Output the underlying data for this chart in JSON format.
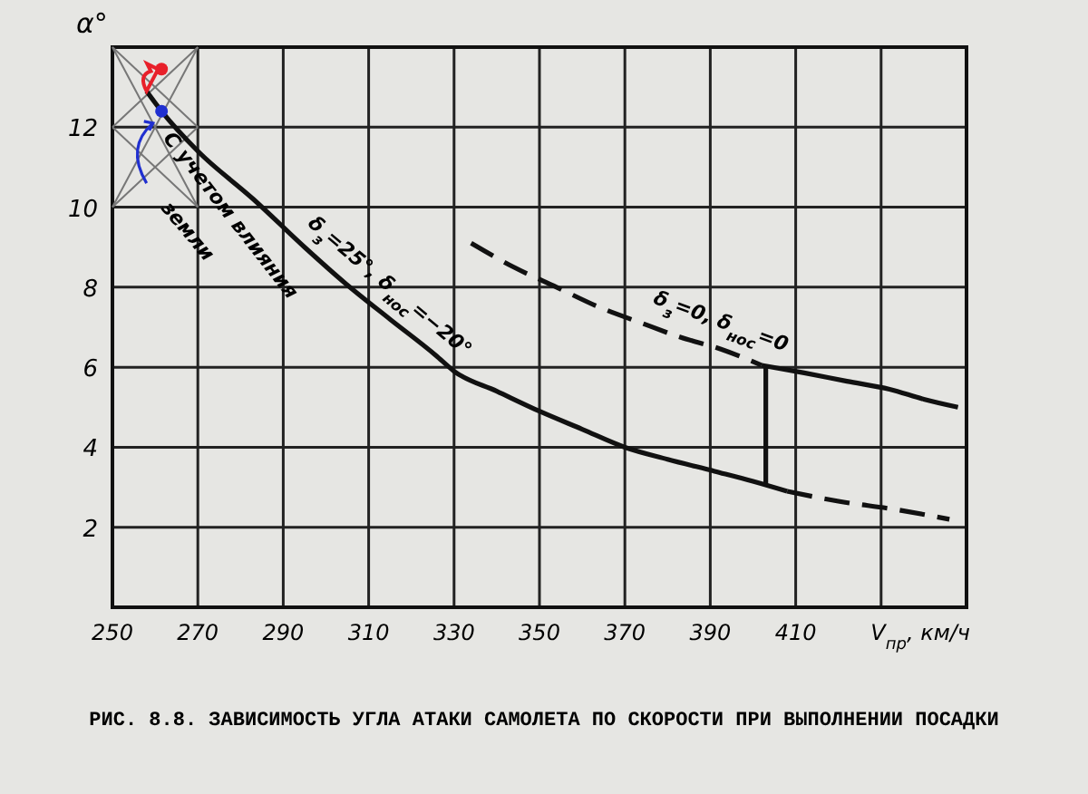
{
  "chart_data": {
    "type": "line",
    "title": "РИС. 8.8. ЗАВИСИМОСТЬ УГЛА АТАКИ САМОЛЕТА ПО СКОРОСТИ ПРИ ВЫПОЛНЕНИИ ПОСАДКИ",
    "xlabel": "V$_{пр}$, км/ч",
    "ylabel": "α°",
    "xlim": [
      250,
      450
    ],
    "xticks": [
      250,
      270,
      290,
      310,
      330,
      350,
      370,
      390,
      410,
      {
        "value": 430,
        "label": null
      }
    ],
    "ylim": [
      0,
      14
    ],
    "yticks": [
      {
        "value": 0,
        "label": null
      },
      2,
      4,
      6,
      8,
      10,
      12,
      {
        "value": 14,
        "label": null
      }
    ],
    "grid": true,
    "series": [
      {
        "color": "#111111",
        "line_style": "solid",
        "x": [
          258,
          261.5,
          270,
          283,
          295,
          304.5,
          315,
          325.7,
          330,
          340,
          350,
          360,
          370,
          380,
          391,
          400,
          408
        ],
        "values": [
          12.9,
          12.4,
          11.4,
          10.2,
          9.0,
          8.1,
          7.2,
          6.3,
          5.9,
          5.4,
          4.9,
          4.45,
          4.0,
          3.7,
          3.4,
          3.15,
          2.9
        ]
      },
      {
        "color": "#111111",
        "line_style": "dashed",
        "x": [
          408,
          420,
          433,
          446
        ],
        "values": [
          2.9,
          2.65,
          2.45,
          2.2
        ]
      },
      {
        "color": "#111111",
        "line_style": "dashed",
        "x": [
          334,
          344,
          354,
          364,
          374,
          383,
          392.5,
          402
        ],
        "values": [
          9.1,
          8.5,
          8.0,
          7.5,
          7.1,
          6.75,
          6.45,
          6.05
        ]
      },
      {
        "color": "#111111",
        "line_style": "solid",
        "x": [
          402,
          412,
          422,
          432,
          440,
          448
        ],
        "values": [
          6.05,
          5.86,
          5.65,
          5.45,
          5.2,
          5.0
        ]
      },
      {
        "color": "#111111",
        "line_style": "solid",
        "x": [
          403,
          403
        ],
        "values": [
          6.0,
          3.1
        ]
      },
      {
        "type": "scatter",
        "color": "#e8202a",
        "marker": "circle",
        "x": [
          261.5
        ],
        "values": [
          13.45
        ]
      },
      {
        "type": "scatter",
        "color": "#2030d0",
        "marker": "circle",
        "x": [
          261.5
        ],
        "values": [
          12.4
        ]
      }
    ],
    "annotations": [
      "δ$_{з}$=25°, δ$_{нос}$=−20°",
      "δ$_{з}$=0, δ$_{нос}$=0",
      "С учетом влияния",
      "земли"
    ]
  }
}
